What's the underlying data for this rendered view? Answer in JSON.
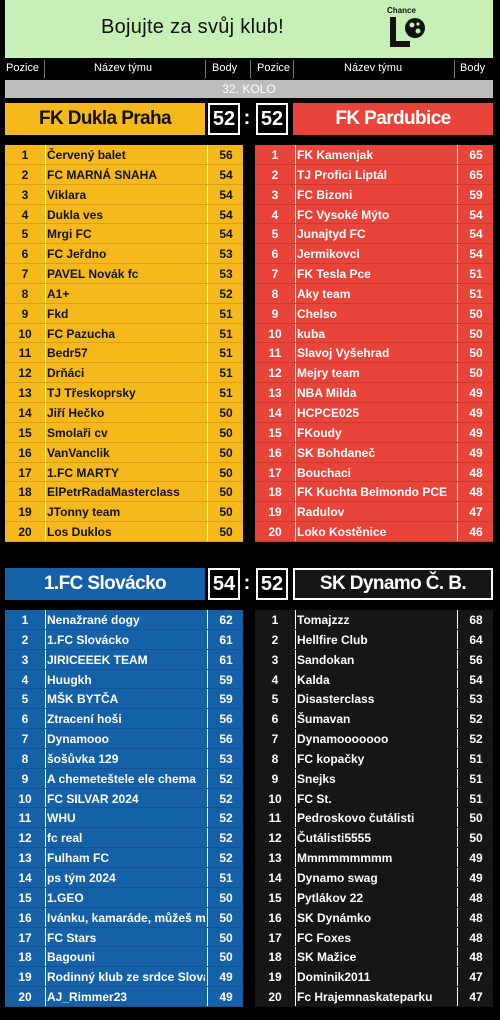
{
  "banner": {
    "text": "Bojujte za svůj klub!",
    "logo_text": "Chance"
  },
  "headers": {
    "pos": "Pozice",
    "name": "Název týmu",
    "pts": "Body"
  },
  "round_label": "32. KOLO",
  "matches": [
    {
      "home": {
        "name": "FK Dukla Praha",
        "score": "52",
        "color": "#f5b91c"
      },
      "away": {
        "name": "FK Pardubice",
        "score": "52",
        "color": "#e8443a"
      }
    },
    {
      "home": {
        "name": "1.FC Slovácko",
        "score": "54",
        "color": "#1561a8"
      },
      "away": {
        "name": "SK Dynamo Č. B.",
        "score": "52",
        "color": "#161616"
      }
    }
  ],
  "tables": {
    "dukla": [
      {
        "pos": "1",
        "name": "Červený balet",
        "pts": "56"
      },
      {
        "pos": "2",
        "name": "FC MARNÁ SNAHA",
        "pts": "54"
      },
      {
        "pos": "3",
        "name": "Viklara",
        "pts": "54"
      },
      {
        "pos": "4",
        "name": "Dukla ves",
        "pts": "54"
      },
      {
        "pos": "5",
        "name": "Mrgi FC",
        "pts": "54"
      },
      {
        "pos": "6",
        "name": "FC Jeřdno",
        "pts": "53"
      },
      {
        "pos": "7",
        "name": "PAVEL Novák fc",
        "pts": "53"
      },
      {
        "pos": "8",
        "name": "A1+",
        "pts": "52"
      },
      {
        "pos": "9",
        "name": "Fkd",
        "pts": "51"
      },
      {
        "pos": "10",
        "name": "FC Pazucha",
        "pts": "51"
      },
      {
        "pos": "11",
        "name": "Bedr57",
        "pts": "51"
      },
      {
        "pos": "12",
        "name": "Drňáci",
        "pts": "51"
      },
      {
        "pos": "13",
        "name": "TJ Třeskoprsky",
        "pts": "51"
      },
      {
        "pos": "14",
        "name": "Jiří Hečko",
        "pts": "50"
      },
      {
        "pos": "15",
        "name": "Smolaři cv",
        "pts": "50"
      },
      {
        "pos": "16",
        "name": "VanVanclik",
        "pts": "50"
      },
      {
        "pos": "17",
        "name": "1.FC MARTY",
        "pts": "50"
      },
      {
        "pos": "18",
        "name": "ElPetrRadaMasterclass",
        "pts": "50"
      },
      {
        "pos": "19",
        "name": "JTonny team",
        "pts": "50"
      },
      {
        "pos": "20",
        "name": "Los Duklos",
        "pts": "50"
      }
    ],
    "pardubice": [
      {
        "pos": "1",
        "name": "FK Kamenjak",
        "pts": "65"
      },
      {
        "pos": "2",
        "name": "TJ Profici Liptál",
        "pts": "65"
      },
      {
        "pos": "3",
        "name": "FC Bizoni",
        "pts": "59"
      },
      {
        "pos": "4",
        "name": "FC Vysoké Mýto",
        "pts": "54"
      },
      {
        "pos": "5",
        "name": "Junajtyd FC",
        "pts": "54"
      },
      {
        "pos": "6",
        "name": "Jermikovci",
        "pts": "54"
      },
      {
        "pos": "7",
        "name": "FK Tesla Pce",
        "pts": "51"
      },
      {
        "pos": "8",
        "name": "Aky team",
        "pts": "51"
      },
      {
        "pos": "9",
        "name": "Chelso",
        "pts": "50"
      },
      {
        "pos": "10",
        "name": "kuba",
        "pts": "50"
      },
      {
        "pos": "11",
        "name": "Slavoj Vyšehrad",
        "pts": "50"
      },
      {
        "pos": "12",
        "name": "Mejry team",
        "pts": "50"
      },
      {
        "pos": "13",
        "name": "NBA Milda",
        "pts": "49"
      },
      {
        "pos": "14",
        "name": "HCPCE025",
        "pts": "49"
      },
      {
        "pos": "15",
        "name": "FKoudy",
        "pts": "49"
      },
      {
        "pos": "16",
        "name": "SK Bohdaneč",
        "pts": "49"
      },
      {
        "pos": "17",
        "name": "Bouchaci",
        "pts": "48"
      },
      {
        "pos": "18",
        "name": "FK Kuchta Belmondo PCE",
        "pts": "48"
      },
      {
        "pos": "19",
        "name": "Radulov",
        "pts": "47"
      },
      {
        "pos": "20",
        "name": "Loko Kostěnice",
        "pts": "46"
      }
    ],
    "slovacko": [
      {
        "pos": "1",
        "name": "Nenažrané dogy",
        "pts": "62"
      },
      {
        "pos": "2",
        "name": "1.FC Slovácko",
        "pts": "61"
      },
      {
        "pos": "3",
        "name": "JIRICEEEK TEAM",
        "pts": "61"
      },
      {
        "pos": "4",
        "name": "Huugkh",
        "pts": "59"
      },
      {
        "pos": "5",
        "name": "MŠK BYTČA",
        "pts": "59"
      },
      {
        "pos": "6",
        "name": "Ztracení hoši",
        "pts": "56"
      },
      {
        "pos": "7",
        "name": "Dynamooo",
        "pts": "56"
      },
      {
        "pos": "8",
        "name": "šošůvka 129",
        "pts": "53"
      },
      {
        "pos": "9",
        "name": "A chemeteštele ele chema",
        "pts": "52"
      },
      {
        "pos": "10",
        "name": "FC SILVAR 2024",
        "pts": "52"
      },
      {
        "pos": "11",
        "name": "WHU",
        "pts": "52"
      },
      {
        "pos": "12",
        "name": "fc real",
        "pts": "52"
      },
      {
        "pos": "13",
        "name": "Fulham FC",
        "pts": "52"
      },
      {
        "pos": "14",
        "name": "ps tým 2024",
        "pts": "51"
      },
      {
        "pos": "15",
        "name": "1.GEO",
        "pts": "50"
      },
      {
        "pos": "16",
        "name": "Ivánku, kamaráde, můžeš mi",
        "pts": "50"
      },
      {
        "pos": "17",
        "name": "FC Stars",
        "pts": "50"
      },
      {
        "pos": "18",
        "name": "Bagouni",
        "pts": "50"
      },
      {
        "pos": "19",
        "name": "Rodinný klub ze srdce Slovácka",
        "pts": "49"
      },
      {
        "pos": "20",
        "name": "AJ_Rimmer23",
        "pts": "49"
      }
    ],
    "dynamo": [
      {
        "pos": "1",
        "name": "Tomajzzz",
        "pts": "68"
      },
      {
        "pos": "2",
        "name": "Hellfire Club",
        "pts": "64"
      },
      {
        "pos": "3",
        "name": "Sandokan",
        "pts": "56"
      },
      {
        "pos": "4",
        "name": "Kalda",
        "pts": "54"
      },
      {
        "pos": "5",
        "name": "Disasterclass",
        "pts": "53"
      },
      {
        "pos": "6",
        "name": "Šumavan",
        "pts": "52"
      },
      {
        "pos": "7",
        "name": "Dynamooooooo",
        "pts": "52"
      },
      {
        "pos": "8",
        "name": "FC kopačky",
        "pts": "51"
      },
      {
        "pos": "9",
        "name": "Snejks",
        "pts": "51"
      },
      {
        "pos": "10",
        "name": "FC St.",
        "pts": "51"
      },
      {
        "pos": "11",
        "name": "Pedroskovo čutálisti",
        "pts": "50"
      },
      {
        "pos": "12",
        "name": "Čutálisti5555",
        "pts": "50"
      },
      {
        "pos": "13",
        "name": "Mmmmmmmmm",
        "pts": "49"
      },
      {
        "pos": "14",
        "name": "Dynamo swag",
        "pts": "49"
      },
      {
        "pos": "15",
        "name": "Pytlákov 22",
        "pts": "48"
      },
      {
        "pos": "16",
        "name": "SK Dynámko",
        "pts": "48"
      },
      {
        "pos": "17",
        "name": "FC Foxes",
        "pts": "48"
      },
      {
        "pos": "18",
        "name": "SK Mažice",
        "pts": "48"
      },
      {
        "pos": "19",
        "name": "Dominik2011",
        "pts": "47"
      },
      {
        "pos": "20",
        "name": "Fc Hrajemnaskateparku",
        "pts": "47"
      }
    ]
  }
}
